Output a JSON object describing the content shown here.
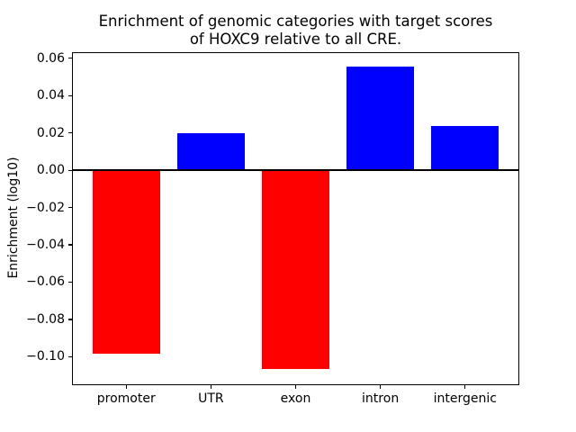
{
  "figure": {
    "background_color": "#ffffff",
    "frame_color": "#000000",
    "text_color": "#000000"
  },
  "chart_data": {
    "type": "bar",
    "title": "Enrichment of genomic categories with target scores\nof HOXC9 relative to all CRE.",
    "xlabel": "",
    "ylabel": "Enrichment (log10)",
    "categories": [
      "promoter",
      "UTR",
      "exon",
      "intron",
      "intergenic"
    ],
    "values": [
      -0.0985,
      0.02,
      -0.1065,
      0.0553,
      0.0237
    ],
    "bar_colors": [
      "#ff0000",
      "#0000ff",
      "#ff0000",
      "#0000ff",
      "#0000ff"
    ],
    "positive_color": "#0000ff",
    "negative_color": "#ff0000",
    "bar_width": 0.8,
    "xlim": [
      -0.64,
      4.64
    ],
    "ylim": [
      -0.115,
      0.0635
    ],
    "yticks": [
      0.06,
      0.04,
      0.02,
      0.0,
      -0.02,
      -0.04,
      -0.06,
      -0.08,
      -0.1
    ],
    "ytick_labels": [
      "0.06",
      "0.04",
      "0.02",
      "0.00",
      "−0.02",
      "−0.04",
      "−0.06",
      "−0.08",
      "−0.10"
    ],
    "grid": false,
    "legend": null,
    "zero_line": true
  }
}
